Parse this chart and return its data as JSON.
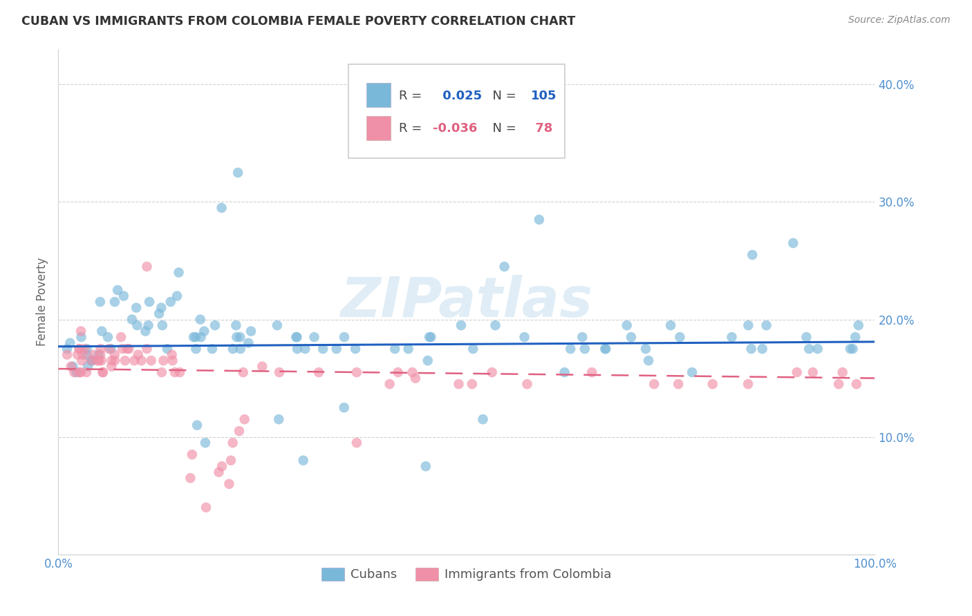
{
  "title": "CUBAN VS IMMIGRANTS FROM COLOMBIA FEMALE POVERTY CORRELATION CHART",
  "source": "Source: ZipAtlas.com",
  "ylabel": "Female Poverty",
  "cuban_R": "0.025",
  "cuban_N": "105",
  "colombia_R": "-0.036",
  "colombia_N": "78",
  "cuban_color": "#7ab8d9",
  "colombia_color": "#f090a8",
  "cuban_line_color": "#2060c0",
  "colombia_line_color": "#e06080",
  "axis_label_color": "#5090d0",
  "ylabel_color": "#666666",
  "title_color": "#333333",
  "source_color": "#888888",
  "background_color": "#ffffff",
  "grid_color": "#d0d0d0",
  "watermark_color": "#c8dff0",
  "ytick_vals": [
    0.0,
    0.1,
    0.2,
    0.3,
    0.4
  ],
  "ytick_labels": [
    "",
    "10.0%",
    "20.0%",
    "30.0%",
    "40.0%"
  ],
  "xtick_vals": [
    0.0,
    1.0
  ],
  "xtick_labels": [
    "0.0%",
    "100.0%"
  ],
  "xlim": [
    0.0,
    1.0
  ],
  "ylim": [
    0.0,
    0.43
  ],
  "cuban_trend_intercept": 0.177,
  "cuban_trend_slope": 0.004,
  "colombia_trend_intercept": 0.158,
  "colombia_trend_slope": -0.008
}
